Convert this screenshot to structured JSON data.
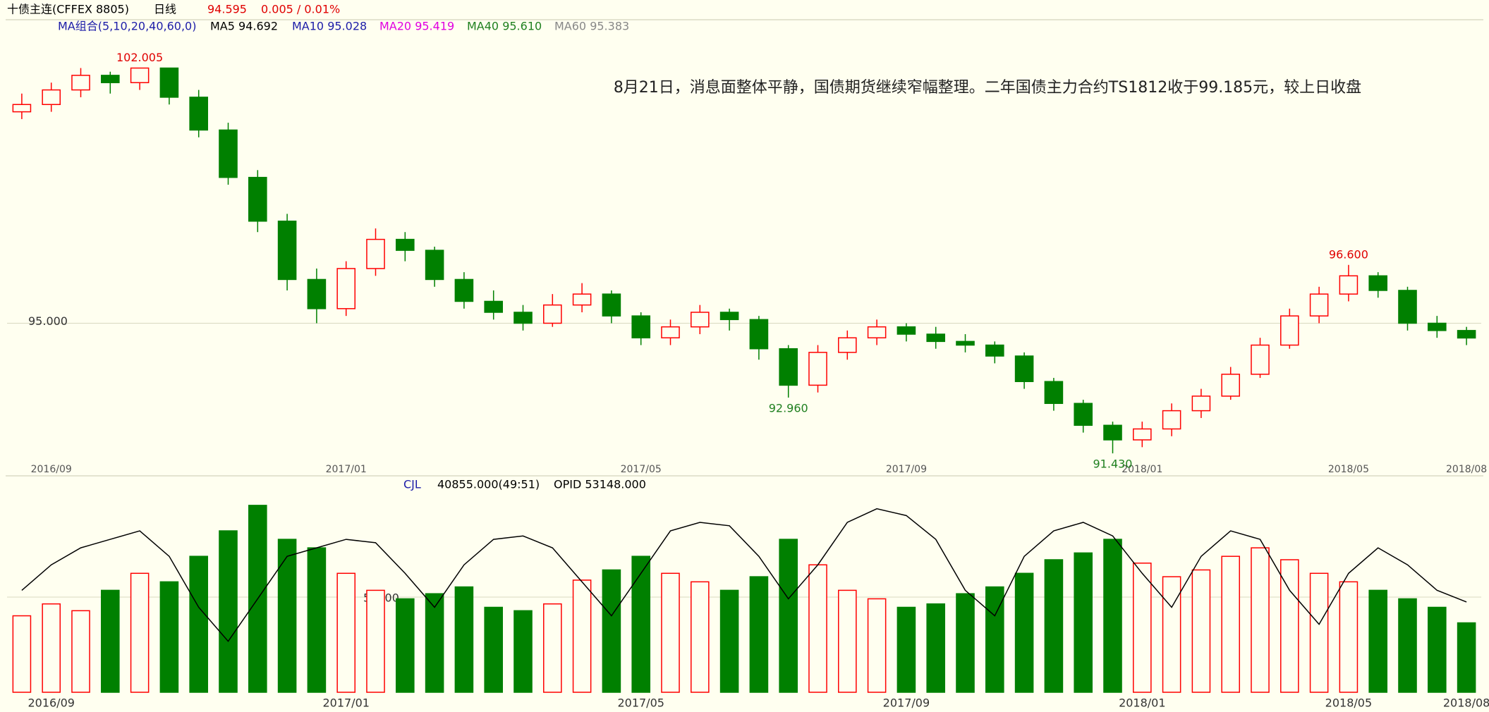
{
  "header": {
    "instrument": "十债主连(CFFEX 8805)",
    "period": "日线",
    "price": "94.595",
    "change": "0.005 / 0.01%"
  },
  "ma_legend": {
    "title": "MA组合(5,10,20,40,60,0)",
    "items": [
      {
        "label": "MA5 94.692",
        "color": "#000000"
      },
      {
        "label": "MA10 95.028",
        "color": "#1c1ca8"
      },
      {
        "label": "MA20 95.419",
        "color": "#e000e0"
      },
      {
        "label": "MA40 95.610",
        "color": "#208020"
      },
      {
        "label": "MA60 95.383",
        "color": "#888888"
      }
    ]
  },
  "annotation": "8月21日，消息面整体平静，国债期货继续窄幅整理。二年国债主力合约TS1812收于99.185元，较上日收盘",
  "volume_legend": {
    "title": "CJL",
    "volume": "40855.000(49:51)",
    "oi": "OPID 53148.000"
  },
  "chart_data": {
    "type": "candlestick",
    "categories": [
      null,
      "2016/09",
      null,
      null,
      null,
      null,
      null,
      null,
      null,
      null,
      null,
      "2017/01",
      null,
      null,
      null,
      null,
      null,
      null,
      null,
      null,
      null,
      "2017/05",
      null,
      null,
      null,
      null,
      null,
      null,
      null,
      null,
      "2017/09",
      null,
      null,
      null,
      null,
      null,
      null,
      null,
      "2018/01",
      null,
      null,
      null,
      null,
      null,
      null,
      "2018/05",
      null,
      null,
      null,
      "2018/08"
    ],
    "open": [
      100.8,
      101.0,
      101.4,
      101.8,
      101.6,
      102.0,
      101.2,
      100.3,
      99.0,
      97.8,
      96.2,
      95.4,
      96.5,
      97.3,
      97.0,
      96.2,
      95.6,
      95.3,
      95.0,
      95.5,
      95.8,
      95.2,
      94.6,
      94.9,
      95.3,
      95.1,
      94.3,
      93.3,
      94.2,
      94.6,
      94.9,
      94.7,
      94.5,
      94.4,
      94.1,
      93.4,
      92.8,
      92.2,
      91.8,
      92.1,
      92.6,
      93.0,
      93.6,
      94.4,
      95.2,
      95.8,
      96.3,
      95.9,
      95.0,
      94.8
    ],
    "high": [
      101.3,
      101.6,
      102.0,
      101.9,
      102.005,
      102.0,
      101.4,
      100.5,
      99.2,
      98.0,
      96.5,
      96.7,
      97.6,
      97.5,
      97.1,
      96.4,
      95.9,
      95.5,
      95.8,
      96.1,
      95.9,
      95.3,
      95.1,
      95.5,
      95.4,
      95.2,
      94.4,
      94.4,
      94.8,
      95.1,
      95.0,
      94.9,
      94.7,
      94.5,
      94.2,
      93.5,
      92.9,
      92.3,
      92.3,
      92.8,
      93.2,
      93.8,
      94.6,
      95.4,
      96.0,
      96.6,
      96.4,
      96.0,
      95.2,
      94.9
    ],
    "low": [
      100.6,
      100.8,
      101.2,
      101.3,
      101.4,
      101.0,
      100.1,
      98.8,
      97.5,
      95.9,
      95.0,
      95.2,
      96.3,
      96.7,
      96.0,
      95.4,
      95.1,
      94.8,
      94.9,
      95.3,
      95.0,
      94.4,
      94.4,
      94.7,
      94.8,
      94.0,
      92.96,
      93.1,
      94.0,
      94.4,
      94.5,
      94.3,
      94.2,
      93.9,
      93.2,
      92.6,
      92.0,
      91.43,
      91.6,
      91.9,
      92.4,
      92.9,
      93.5,
      94.3,
      95.0,
      95.6,
      95.7,
      94.8,
      94.6,
      94.4
    ],
    "close": [
      101.0,
      101.4,
      101.8,
      101.6,
      102.0,
      101.2,
      100.3,
      99.0,
      97.8,
      96.2,
      95.4,
      96.5,
      97.3,
      97.0,
      96.2,
      95.6,
      95.3,
      95.0,
      95.5,
      95.8,
      95.2,
      94.6,
      94.9,
      95.3,
      95.1,
      94.3,
      93.3,
      94.2,
      94.6,
      94.9,
      94.7,
      94.5,
      94.4,
      94.1,
      93.4,
      92.8,
      92.2,
      91.8,
      92.1,
      92.6,
      93.0,
      93.6,
      94.4,
      95.2,
      95.8,
      96.3,
      95.9,
      95.0,
      94.8,
      94.595
    ],
    "up_color": "#ff0000",
    "down_color": "#008000",
    "ylim": [
      91.2,
      102.9
    ],
    "yticks": [
      {
        "value": 95,
        "label": "95.000"
      }
    ],
    "grid": true,
    "extremes": [
      {
        "value": 102.005,
        "label": "102.005"
      },
      {
        "value": 92.96,
        "label": "92.960"
      },
      {
        "value": 91.43,
        "label": "91.430"
      },
      {
        "value": 96.6,
        "label": "96.600"
      }
    ],
    "volume": {
      "ylim": [
        0,
        117000
      ],
      "yticks": [
        56000
      ],
      "values": [
        45000,
        52000,
        48000,
        60000,
        70000,
        65000,
        80000,
        95000,
        110000,
        90000,
        85000,
        70000,
        60000,
        55000,
        58000,
        62000,
        50000,
        48000,
        52000,
        66000,
        72000,
        80000,
        70000,
        65000,
        60000,
        68000,
        90000,
        75000,
        60000,
        55000,
        50000,
        52000,
        58000,
        62000,
        70000,
        78000,
        82000,
        90000,
        76000,
        68000,
        72000,
        80000,
        85000,
        78000,
        70000,
        65000,
        60000,
        55000,
        50000,
        40855
      ],
      "oi": {
        "color": "#000000",
        "values": [
          60000,
          75000,
          85000,
          90000,
          95000,
          80000,
          50000,
          30000,
          55000,
          80000,
          85000,
          90000,
          88000,
          70000,
          50000,
          75000,
          90000,
          92000,
          85000,
          65000,
          45000,
          70000,
          95000,
          100000,
          98000,
          80000,
          55000,
          75000,
          100000,
          108000,
          104000,
          90000,
          60000,
          45000,
          80000,
          95000,
          100000,
          92000,
          70000,
          50000,
          80000,
          95000,
          90000,
          60000,
          40000,
          70000,
          85000,
          75000,
          60000,
          53148
        ]
      }
    }
  }
}
